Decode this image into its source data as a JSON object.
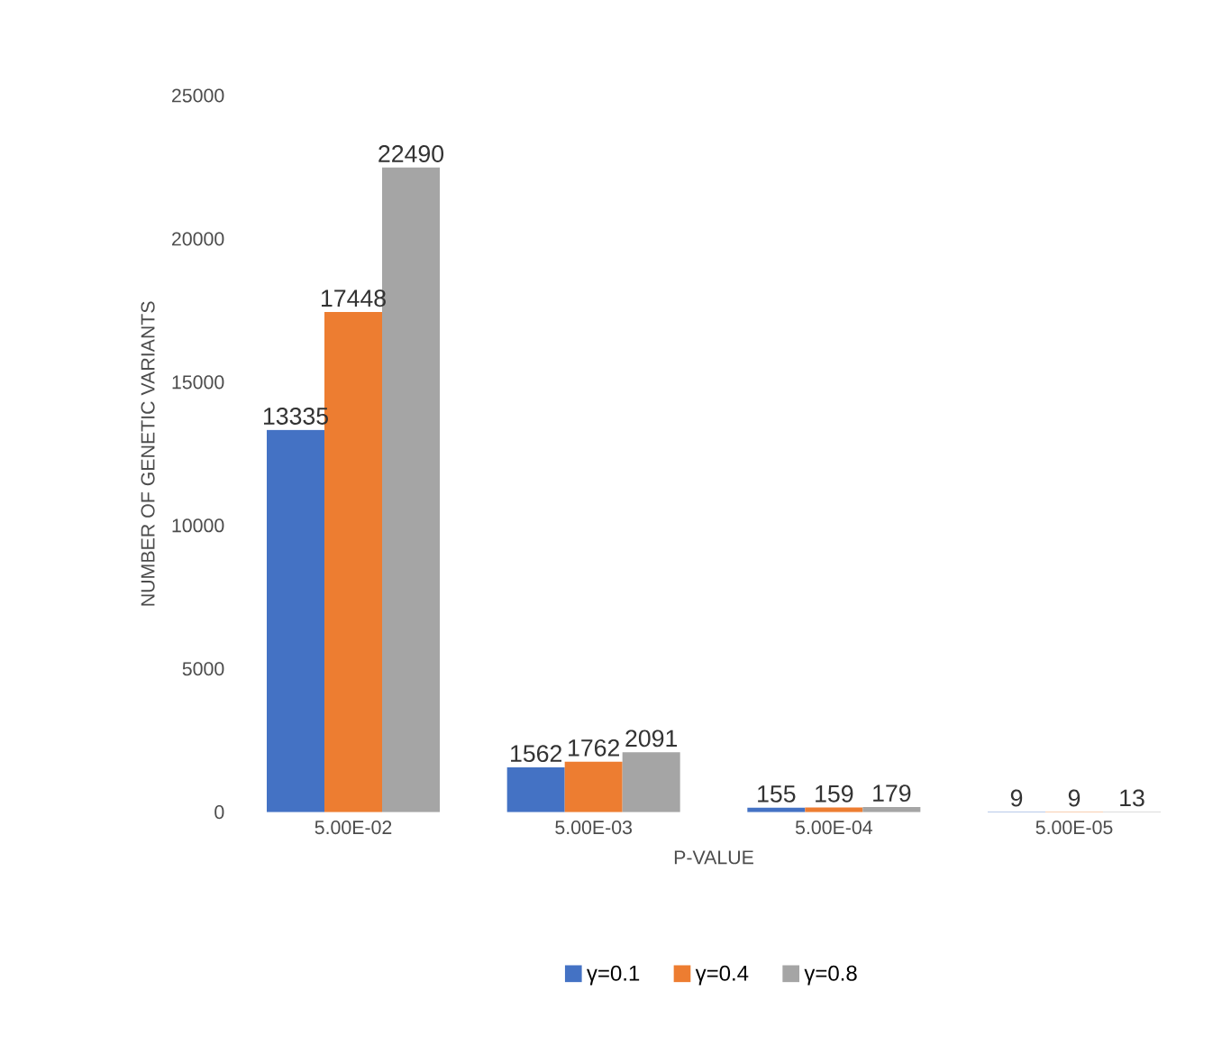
{
  "chart_data": {
    "type": "bar",
    "xlabel": "P-VALUE",
    "ylabel": "NUMBER OF GENETIC VARIANTS",
    "categories": [
      "5.00E-02",
      "5.00E-03",
      "5.00E-04",
      "5.00E-05"
    ],
    "series": [
      {
        "name": "γ=0.1",
        "color": "#4472c4",
        "values": [
          13335,
          1562,
          155,
          9
        ]
      },
      {
        "name": "γ=0.4",
        "color": "#ed7d31",
        "values": [
          17448,
          1762,
          159,
          9
        ]
      },
      {
        "name": "γ=0.8",
        "color": "#a5a5a5",
        "values": [
          22490,
          2091,
          179,
          13
        ]
      }
    ],
    "ylim": [
      0,
      25000
    ],
    "yticks": [
      0,
      5000,
      10000,
      15000,
      20000,
      25000
    ],
    "data_labels": true,
    "legend": "bottom",
    "grid": false
  }
}
